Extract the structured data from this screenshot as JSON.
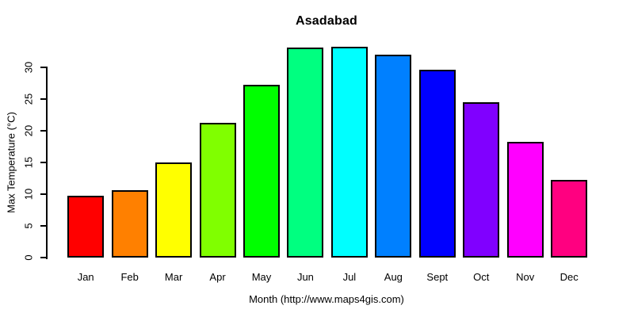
{
  "page": {
    "background": "#FFFFFF",
    "text_color": "#000000",
    "axis_color": "#000000"
  },
  "chart_data": {
    "type": "bar",
    "title": "Asadabad",
    "xlabel": "Month (http://www.maps4gis.com)",
    "ylabel": "Max Temperature (°C)",
    "categories": [
      "Jan",
      "Feb",
      "Mar",
      "Apr",
      "May",
      "Jun",
      "Jul",
      "Aug",
      "Sept",
      "Oct",
      "Nov",
      "Dec"
    ],
    "values": [
      9.7,
      10.6,
      15.0,
      21.3,
      27.3,
      33.1,
      33.3,
      32.0,
      29.6,
      24.5,
      18.2,
      12.2
    ],
    "bar_colors": [
      "#FF0000",
      "#FF8000",
      "#FFFF00",
      "#80FF00",
      "#00FF00",
      "#00FF80",
      "#00FFFF",
      "#0080FF",
      "#0000FF",
      "#8000FF",
      "#FF00FF",
      "#FF0080"
    ],
    "bar_border_color": "#000000",
    "yticks": [
      0,
      5,
      10,
      15,
      20,
      25,
      30
    ],
    "ylim": [
      0,
      34
    ],
    "grid": false,
    "legend": false
  }
}
